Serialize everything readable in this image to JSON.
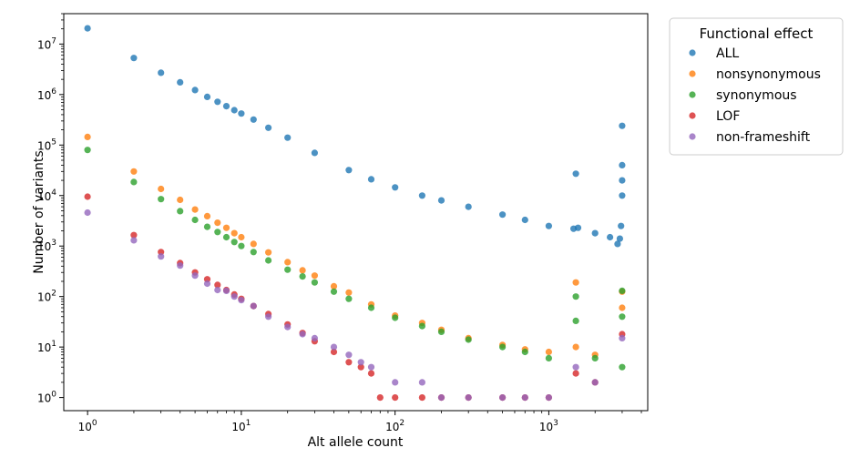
{
  "chart_data": {
    "type": "scatter",
    "xscale": "log",
    "yscale": "log",
    "xlim": [
      0.7,
      4400
    ],
    "ylim": [
      0.55,
      40000000
    ],
    "xlabel": "Alt allele count",
    "ylabel": "Number of variants",
    "x_ticks": [
      {
        "value": 1,
        "base": "10",
        "exp": "0"
      },
      {
        "value": 10,
        "base": "10",
        "exp": "1"
      },
      {
        "value": 100,
        "base": "10",
        "exp": "2"
      },
      {
        "value": 1000,
        "base": "10",
        "exp": "3"
      }
    ],
    "y_ticks": [
      {
        "value": 1,
        "base": "10",
        "exp": "0"
      },
      {
        "value": 10,
        "base": "10",
        "exp": "1"
      },
      {
        "value": 100,
        "base": "10",
        "exp": "2"
      },
      {
        "value": 1000,
        "base": "10",
        "exp": "3"
      },
      {
        "value": 10000,
        "base": "10",
        "exp": "4"
      },
      {
        "value": 100000,
        "base": "10",
        "exp": "5"
      },
      {
        "value": 1000000,
        "base": "10",
        "exp": "6"
      },
      {
        "value": 10000000,
        "base": "10",
        "exp": "7"
      }
    ],
    "legend": {
      "title": "Functional effect",
      "location": "outside upper right"
    },
    "grid": false,
    "series": [
      {
        "name": "ALL",
        "color": "#1f77b4",
        "x": [
          1,
          2,
          3,
          4,
          5,
          6,
          7,
          8,
          9,
          10,
          12,
          15,
          20,
          30,
          50,
          70,
          100,
          150,
          200,
          300,
          500,
          700,
          1000,
          1450,
          1500,
          1550,
          2000,
          2500,
          2800,
          2900,
          2950,
          3000,
          3000,
          3000,
          3000
        ],
        "y": [
          20500000,
          5300000,
          2700000,
          1750000,
          1230000,
          900000,
          720000,
          590000,
          490000,
          420000,
          320000,
          220000,
          140000,
          70000,
          32000,
          21000,
          14500,
          10000,
          8000,
          6000,
          4200,
          3300,
          2500,
          2200,
          27000,
          2300,
          1800,
          1500,
          1100,
          1400,
          2500,
          40000,
          20000,
          240000,
          10000
        ]
      },
      {
        "name": "nonsynonymous",
        "color": "#ff7f0e",
        "x": [
          1,
          2,
          3,
          4,
          5,
          6,
          7,
          8,
          9,
          10,
          12,
          15,
          20,
          25,
          30,
          40,
          50,
          70,
          100,
          150,
          200,
          300,
          500,
          700,
          1000,
          1500,
          1500,
          2000,
          3000,
          3000
        ],
        "y": [
          145000,
          30000,
          13500,
          8200,
          5300,
          3900,
          2900,
          2300,
          1800,
          1500,
          1100,
          750,
          480,
          330,
          260,
          160,
          120,
          70,
          42,
          30,
          22,
          15,
          11,
          9,
          8,
          190,
          10,
          7,
          125,
          60
        ]
      },
      {
        "name": "synonymous",
        "color": "#2ca02c",
        "x": [
          1,
          2,
          3,
          4,
          5,
          6,
          7,
          8,
          9,
          10,
          12,
          15,
          20,
          25,
          30,
          40,
          50,
          70,
          100,
          150,
          200,
          300,
          500,
          700,
          1000,
          1500,
          1500,
          2000,
          3000,
          3000,
          3000
        ],
        "y": [
          80000,
          18500,
          8500,
          4900,
          3300,
          2400,
          1900,
          1500,
          1200,
          1000,
          760,
          520,
          340,
          250,
          190,
          125,
          90,
          60,
          38,
          26,
          20,
          14,
          10,
          8,
          6,
          100,
          33,
          6,
          130,
          40,
          4
        ]
      },
      {
        "name": "LOF",
        "color": "#d62728",
        "x": [
          1,
          2,
          3,
          4,
          5,
          6,
          7,
          8,
          9,
          10,
          12,
          15,
          20,
          25,
          30,
          40,
          50,
          60,
          70,
          80,
          100,
          150,
          200,
          300,
          500,
          700,
          1000,
          1500,
          2000,
          3000
        ],
        "y": [
          9500,
          1650,
          760,
          460,
          300,
          220,
          170,
          135,
          110,
          90,
          65,
          45,
          28,
          19,
          13,
          8,
          5,
          4,
          3,
          1,
          1,
          1,
          1,
          1,
          1,
          1,
          1,
          3,
          2,
          18
        ]
      },
      {
        "name": "non-frameshift",
        "color": "#9467bd",
        "x": [
          1,
          2,
          3,
          4,
          5,
          6,
          7,
          8,
          9,
          10,
          12,
          15,
          20,
          25,
          30,
          40,
          50,
          60,
          70,
          100,
          150,
          200,
          300,
          500,
          700,
          1000,
          1500,
          2000,
          3000
        ],
        "y": [
          4600,
          1300,
          620,
          410,
          260,
          180,
          135,
          130,
          100,
          85,
          65,
          40,
          25,
          18,
          15,
          10,
          7,
          5,
          4,
          2,
          2,
          1,
          1,
          1,
          1,
          1,
          4,
          2,
          15
        ]
      }
    ]
  }
}
